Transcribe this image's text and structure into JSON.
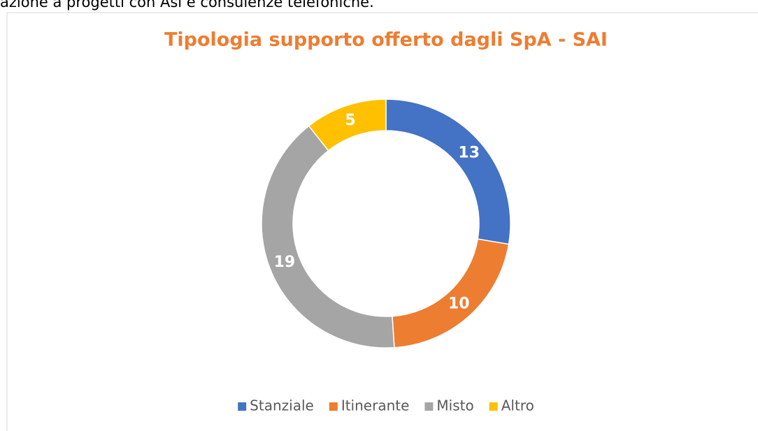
{
  "page_text": "azione a progetti con Asl e consulenze telefoniche.",
  "chart_data": {
    "type": "pie",
    "title": "Tipologia supporto offerto dagli SpA - SAI",
    "categories": [
      "Stanziale",
      "Itinerante",
      "Misto",
      "Altro"
    ],
    "values": [
      13,
      10,
      19,
      5
    ],
    "colors": [
      "#4472c4",
      "#ed7d31",
      "#a5a5a5",
      "#ffc000"
    ],
    "donut": true,
    "legend": "bottom"
  }
}
